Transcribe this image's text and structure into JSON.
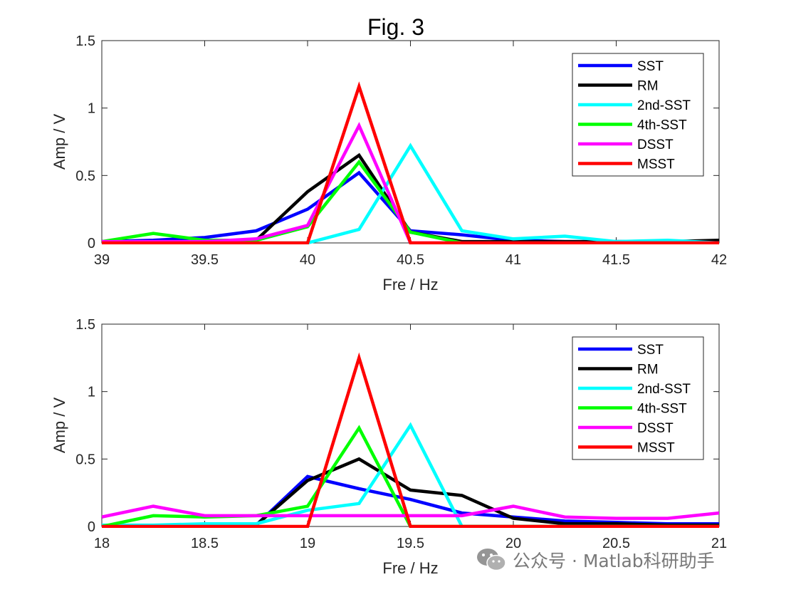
{
  "figure_title": "Fig. 3",
  "colors": {
    "SST": "#0000ff",
    "RM": "#000000",
    "2nd-SST": "#00ffff",
    "4th-SST": "#00ff00",
    "DSST": "#ff00ff",
    "MSST": "#ff0000"
  },
  "watermark": {
    "icon": "wechat-icon",
    "text": "公众号 · Matlab科研助手"
  },
  "chart_data": [
    {
      "type": "line",
      "title": "Fig. 3",
      "xlabel": "Fre / Hz",
      "ylabel": "Amp / V",
      "xlim": [
        39,
        42
      ],
      "ylim": [
        0,
        1.5
      ],
      "xticks": [
        39,
        39.5,
        40,
        40.5,
        41,
        41.5,
        42
      ],
      "xtick_labels": [
        "39",
        "39.5",
        "40",
        "40.5",
        "41",
        "41.5",
        "42"
      ],
      "yticks": [
        0,
        0.5,
        1,
        1.5
      ],
      "ytick_labels": [
        "0",
        "0.5",
        "1",
        "1.5"
      ],
      "grid": false,
      "legend_position": "top-right",
      "x": [
        39,
        39.25,
        39.5,
        39.75,
        40,
        40.25,
        40.5,
        40.75,
        41,
        41.25,
        41.5,
        41.75,
        42
      ],
      "series": [
        {
          "name": "SST",
          "values": [
            0.01,
            0.02,
            0.04,
            0.09,
            0.25,
            0.52,
            0.09,
            0.06,
            0.02,
            0.01,
            0.01,
            0.01,
            0.01
          ]
        },
        {
          "name": "RM",
          "values": [
            0.01,
            0.01,
            0.01,
            0.02,
            0.38,
            0.65,
            0.08,
            0.01,
            0.01,
            0.01,
            0.01,
            0.01,
            0.02
          ]
        },
        {
          "name": "2nd-SST",
          "values": [
            0,
            0,
            0,
            0,
            0,
            0.1,
            0.72,
            0.09,
            0.03,
            0.05,
            0.01,
            0.02,
            0
          ]
        },
        {
          "name": "4th-SST",
          "values": [
            0.01,
            0.07,
            0.02,
            0.02,
            0.12,
            0.6,
            0.08,
            0,
            0,
            0,
            0,
            0,
            0
          ]
        },
        {
          "name": "DSST",
          "values": [
            0.01,
            0.01,
            0.01,
            0.03,
            0.13,
            0.87,
            0,
            0,
            0,
            0,
            0,
            0,
            0
          ]
        },
        {
          "name": "MSST",
          "values": [
            0,
            0,
            0,
            0,
            0,
            1.16,
            0,
            0,
            0,
            0,
            0,
            0,
            0
          ]
        }
      ]
    },
    {
      "type": "line",
      "xlabel": "Fre / Hz",
      "ylabel": "Amp / V",
      "xlim": [
        18,
        21
      ],
      "ylim": [
        0,
        1.5
      ],
      "xticks": [
        18,
        18.5,
        19,
        19.5,
        20,
        20.5,
        21
      ],
      "xtick_labels": [
        "18",
        "18.5",
        "19",
        "19.5",
        "20",
        "20.5",
        "21"
      ],
      "yticks": [
        0,
        0.5,
        1,
        1.5
      ],
      "ytick_labels": [
        "0",
        "0.5",
        "1",
        "1.5"
      ],
      "grid": false,
      "legend_position": "top-right",
      "x": [
        18,
        18.25,
        18.5,
        18.75,
        19,
        19.25,
        19.5,
        19.75,
        20,
        20.25,
        20.5,
        20.75,
        21
      ],
      "series": [
        {
          "name": "SST",
          "values": [
            0,
            0,
            0,
            0.01,
            0.37,
            0.28,
            0.2,
            0.1,
            0.07,
            0.04,
            0.03,
            0.02,
            0.02
          ]
        },
        {
          "name": "RM",
          "values": [
            0,
            0,
            0,
            0.01,
            0.34,
            0.5,
            0.27,
            0.23,
            0.06,
            0.02,
            0.02,
            0.01,
            0.01
          ]
        },
        {
          "name": "2nd-SST",
          "values": [
            0.01,
            0.01,
            0.02,
            0.02,
            0.12,
            0.17,
            0.75,
            0,
            0,
            0,
            0,
            0,
            0
          ]
        },
        {
          "name": "4th-SST",
          "values": [
            0,
            0.08,
            0.07,
            0.08,
            0.15,
            0.73,
            0,
            0,
            0,
            0,
            0,
            0,
            0
          ]
        },
        {
          "name": "DSST",
          "values": [
            0.07,
            0.15,
            0.08,
            0.08,
            0.08,
            0.08,
            0.08,
            0.08,
            0.15,
            0.07,
            0.06,
            0.06,
            0.1
          ]
        },
        {
          "name": "MSST",
          "values": [
            0,
            0,
            0,
            0,
            0,
            1.25,
            0,
            0,
            0,
            0,
            0,
            0,
            0
          ]
        }
      ]
    }
  ]
}
